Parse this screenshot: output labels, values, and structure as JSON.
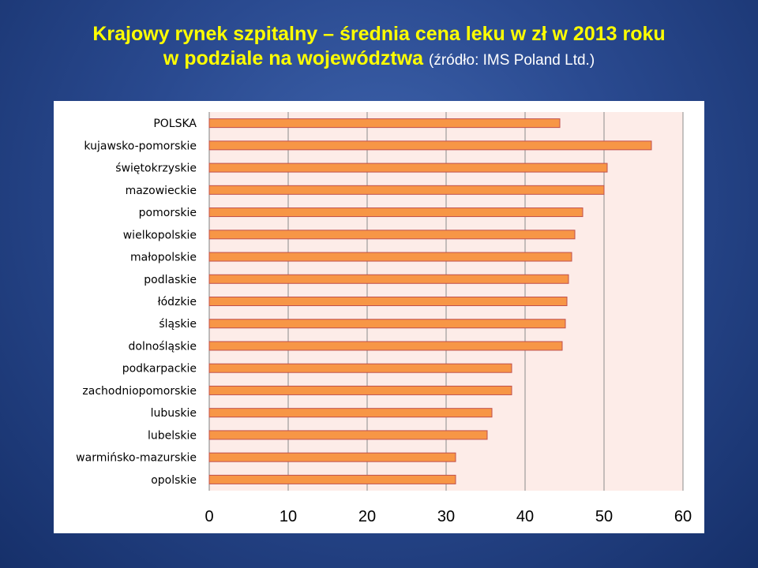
{
  "header": {
    "line1": "Krajowy rynek szpitalny – średnia cena leku w zł w 2013 roku",
    "line2": "w podziale na województwa",
    "source": "(źródło: IMS Poland Ltd.)"
  },
  "colors": {
    "bar_fill": "#f79646",
    "bar_stroke": "#c0504d",
    "plot_bg": "#fdece8",
    "title": "#ffff00"
  },
  "chart_data": {
    "type": "bar",
    "orientation": "horizontal",
    "categories": [
      "POLSKA",
      "kujawsko-pomorskie",
      "świętokrzyskie",
      "mazowieckie",
      "pomorskie",
      "wielkopolskie",
      "małopolskie",
      "podlaskie",
      "łódzkie",
      "śląskie",
      "dolnośląskie",
      "podkarpackie",
      "zachodniopomorskie",
      "lubuskie",
      "lubelskie",
      "warmińsko-mazurskie",
      "opolskie"
    ],
    "values": [
      44.4,
      56.0,
      50.4,
      50.0,
      47.3,
      46.3,
      45.9,
      45.5,
      45.3,
      45.1,
      44.7,
      38.3,
      38.3,
      35.8,
      35.2,
      31.2,
      31.2
    ],
    "xlim": [
      0,
      60
    ],
    "xticks": [
      0,
      10,
      20,
      30,
      40,
      50,
      60
    ],
    "grid": true,
    "legend": "none"
  }
}
